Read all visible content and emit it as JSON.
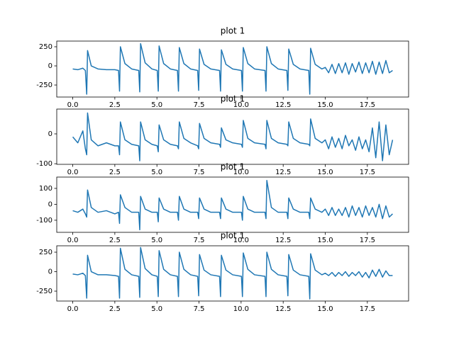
{
  "chart_data": [
    {
      "type": "line",
      "title": "plot 1",
      "color": "#1f77b4",
      "x": [
        0,
        0.3,
        0.6,
        0.75,
        0.83,
        0.88,
        1.1,
        1.5,
        2.0,
        2.5,
        2.72,
        2.78,
        2.83,
        3.1,
        3.5,
        3.92,
        3.98,
        4.03,
        4.3,
        4.7,
        5.02,
        5.08,
        5.13,
        5.4,
        5.8,
        6.22,
        6.28,
        6.33,
        6.6,
        7.0,
        7.42,
        7.48,
        7.53,
        7.8,
        8.2,
        8.72,
        8.78,
        8.83,
        9.1,
        9.5,
        10.02,
        10.08,
        10.13,
        10.4,
        10.8,
        11.42,
        11.48,
        11.53,
        11.8,
        12.2,
        12.72,
        12.78,
        12.83,
        13.1,
        13.5,
        14.02,
        14.08,
        14.13,
        14.4,
        14.8,
        15.0,
        15.2,
        15.4,
        15.6,
        15.8,
        16.0,
        16.2,
        16.4,
        16.6,
        16.8,
        17.0,
        17.2,
        17.4,
        17.6,
        17.8,
        18.0,
        18.2,
        18.4,
        18.6,
        18.8,
        19.0
      ],
      "values": [
        -40,
        -50,
        -30,
        -60,
        -370,
        200,
        0,
        -40,
        -50,
        -50,
        -60,
        -330,
        250,
        30,
        -40,
        -60,
        -340,
        290,
        40,
        -40,
        -60,
        -330,
        260,
        30,
        -40,
        -60,
        -330,
        240,
        30,
        -40,
        -60,
        -320,
        220,
        20,
        -40,
        -60,
        -330,
        210,
        20,
        -40,
        -60,
        -330,
        240,
        30,
        -40,
        -60,
        -330,
        250,
        30,
        -40,
        -60,
        -320,
        220,
        20,
        -40,
        -60,
        -370,
        230,
        20,
        -40,
        -20,
        -90,
        20,
        -100,
        30,
        -90,
        40,
        -110,
        30,
        -80,
        50,
        -100,
        40,
        -90,
        60,
        -110,
        50,
        -100,
        70,
        -90,
        -60
      ],
      "xlim": [
        -0.95,
        19.95
      ],
      "ylim": [
        -407,
        324
      ],
      "xticks": [
        {
          "value": 0,
          "label": "0.0"
        },
        2.5,
        {
          "value": 5,
          "label": "5.0"
        },
        7.5,
        {
          "value": 10,
          "label": "10.0"
        },
        12.5,
        {
          "value": 15,
          "label": "15.0"
        },
        17.5
      ],
      "yticks": [
        -250,
        0,
        250
      ]
    },
    {
      "type": "line",
      "title": "plot 1",
      "color": "#1f77b4",
      "x": [
        0,
        0.3,
        0.6,
        0.75,
        0.83,
        0.88,
        1.1,
        1.5,
        2.0,
        2.5,
        2.72,
        2.78,
        2.83,
        3.1,
        3.5,
        3.92,
        3.98,
        4.03,
        4.3,
        4.7,
        5.02,
        5.08,
        5.13,
        5.4,
        5.8,
        6.22,
        6.28,
        6.33,
        6.6,
        7.0,
        7.42,
        7.48,
        7.53,
        7.8,
        8.2,
        8.72,
        8.78,
        8.83,
        9.1,
        9.5,
        10.02,
        10.08,
        10.13,
        10.4,
        10.8,
        11.42,
        11.48,
        11.53,
        11.8,
        12.2,
        12.72,
        12.78,
        12.83,
        13.1,
        13.5,
        14.02,
        14.08,
        14.13,
        14.4,
        14.8,
        15.0,
        15.2,
        15.4,
        15.6,
        15.8,
        16.0,
        16.2,
        16.4,
        16.6,
        16.8,
        17.0,
        17.2,
        17.4,
        17.6,
        17.8,
        18.0,
        18.2,
        18.4,
        18.6,
        18.8,
        19.0
      ],
      "values": [
        -10,
        -30,
        10,
        -50,
        -70,
        70,
        -20,
        -40,
        -30,
        -40,
        -40,
        -70,
        40,
        -20,
        -35,
        -40,
        -90,
        40,
        -20,
        -35,
        -40,
        -60,
        30,
        -20,
        -35,
        -40,
        -50,
        40,
        -15,
        -30,
        -40,
        -50,
        35,
        -15,
        -30,
        -35,
        -45,
        20,
        -20,
        -30,
        -35,
        -45,
        45,
        -15,
        -30,
        -35,
        -50,
        45,
        -15,
        -30,
        -35,
        -40,
        40,
        -15,
        -30,
        -35,
        -40,
        50,
        -15,
        -30,
        -20,
        -50,
        -10,
        -45,
        -15,
        -50,
        -5,
        -40,
        -20,
        -55,
        -10,
        -50,
        -20,
        -60,
        20,
        -80,
        40,
        -90,
        30,
        -70,
        -20
      ],
      "xlim": [
        -0.95,
        19.95
      ],
      "ylim": [
        -102,
        83
      ],
      "xticks": [
        {
          "value": 0,
          "label": "0.0"
        },
        2.5,
        {
          "value": 5,
          "label": "5.0"
        },
        7.5,
        {
          "value": 10,
          "label": "10.0"
        },
        12.5,
        {
          "value": 15,
          "label": "15.0"
        },
        17.5
      ],
      "yticks": [
        -100,
        0
      ]
    },
    {
      "type": "line",
      "title": "plot 1",
      "color": "#1f77b4",
      "x": [
        0,
        0.3,
        0.6,
        0.75,
        0.83,
        0.88,
        1.1,
        1.5,
        2.0,
        2.5,
        2.72,
        2.78,
        2.83,
        3.1,
        3.5,
        3.92,
        3.98,
        4.03,
        4.3,
        4.7,
        5.02,
        5.08,
        5.13,
        5.4,
        5.8,
        6.22,
        6.28,
        6.33,
        6.6,
        7.0,
        7.42,
        7.48,
        7.53,
        7.8,
        8.2,
        8.72,
        8.78,
        8.83,
        9.1,
        9.5,
        10.02,
        10.08,
        10.13,
        10.4,
        10.8,
        11.42,
        11.48,
        11.53,
        11.8,
        12.2,
        12.72,
        12.78,
        12.83,
        13.1,
        13.5,
        14.02,
        14.08,
        14.13,
        14.4,
        14.8,
        15.0,
        15.2,
        15.4,
        15.6,
        15.8,
        16.0,
        16.2,
        16.4,
        16.6,
        16.8,
        17.0,
        17.2,
        17.4,
        17.6,
        17.8,
        18.0,
        18.2,
        18.4,
        18.6,
        18.8,
        19.0
      ],
      "values": [
        -40,
        -50,
        -30,
        -60,
        -80,
        90,
        -20,
        -50,
        -40,
        -60,
        -50,
        -120,
        60,
        -20,
        -50,
        -50,
        -160,
        50,
        -30,
        -50,
        -50,
        -110,
        40,
        -30,
        -50,
        -50,
        -100,
        50,
        -30,
        -50,
        -50,
        -90,
        40,
        -30,
        -50,
        -50,
        -90,
        40,
        -30,
        -50,
        -50,
        -100,
        50,
        -30,
        -50,
        -50,
        -90,
        150,
        -20,
        -50,
        -50,
        -90,
        40,
        -30,
        -50,
        -50,
        -90,
        40,
        -30,
        -50,
        -30,
        -70,
        -20,
        -70,
        -30,
        -70,
        -20,
        -80,
        -10,
        -70,
        -20,
        -80,
        -10,
        -70,
        -20,
        -80,
        0,
        -90,
        -10,
        -80,
        -60
      ],
      "xlim": [
        -0.95,
        19.95
      ],
      "ylim": [
        -176,
        171
      ],
      "xticks": [
        {
          "value": 0,
          "label": "0.0"
        },
        2.5,
        {
          "value": 5,
          "label": "5.0"
        },
        7.5,
        {
          "value": 10,
          "label": "10.0"
        },
        12.5,
        {
          "value": 15,
          "label": "15.0"
        },
        17.5
      ],
      "yticks": [
        -100,
        0,
        100
      ]
    },
    {
      "type": "line",
      "title": "plot 1",
      "color": "#1f77b4",
      "x": [
        0,
        0.3,
        0.6,
        0.75,
        0.83,
        0.88,
        1.1,
        1.5,
        2.0,
        2.5,
        2.72,
        2.78,
        2.83,
        3.1,
        3.5,
        3.92,
        3.98,
        4.03,
        4.3,
        4.7,
        5.02,
        5.08,
        5.13,
        5.4,
        5.8,
        6.22,
        6.28,
        6.33,
        6.6,
        7.0,
        7.42,
        7.48,
        7.53,
        7.8,
        8.2,
        8.72,
        8.78,
        8.83,
        9.1,
        9.5,
        10.02,
        10.08,
        10.13,
        10.4,
        10.8,
        11.42,
        11.48,
        11.53,
        11.8,
        12.2,
        12.72,
        12.78,
        12.83,
        13.1,
        13.5,
        14.02,
        14.08,
        14.13,
        14.4,
        14.8,
        15.0,
        15.2,
        15.4,
        15.6,
        15.8,
        16.0,
        16.2,
        16.4,
        16.6,
        16.8,
        17.0,
        17.2,
        17.4,
        17.6,
        17.8,
        18.0,
        18.2,
        18.4,
        18.6,
        18.8,
        19.0
      ],
      "values": [
        -30,
        -40,
        -20,
        -50,
        -340,
        210,
        0,
        -40,
        -40,
        -50,
        -60,
        -340,
        300,
        30,
        -40,
        -60,
        -330,
        310,
        40,
        -40,
        -60,
        -320,
        270,
        30,
        -40,
        -60,
        -320,
        250,
        30,
        -40,
        -60,
        -310,
        220,
        20,
        -40,
        -60,
        -320,
        210,
        20,
        -40,
        -60,
        -320,
        240,
        30,
        -40,
        -60,
        -320,
        250,
        30,
        -40,
        -60,
        -310,
        220,
        20,
        -40,
        -60,
        -350,
        230,
        20,
        -40,
        -20,
        -50,
        -10,
        -60,
        -10,
        -50,
        0,
        -60,
        -10,
        -50,
        0,
        -70,
        -10,
        -80,
        20,
        -60,
        30,
        -70,
        10,
        -50,
        -50
      ],
      "xlim": [
        -0.95,
        19.95
      ],
      "ylim": [
        -377,
        332
      ],
      "xticks": [
        {
          "value": 0,
          "label": "0.0"
        },
        2.5,
        {
          "value": 5,
          "label": "5.0"
        },
        7.5,
        {
          "value": 10,
          "label": "10.0"
        },
        12.5,
        {
          "value": 15,
          "label": "15.0"
        },
        17.5
      ],
      "yticks": [
        -250,
        0,
        250
      ]
    }
  ]
}
